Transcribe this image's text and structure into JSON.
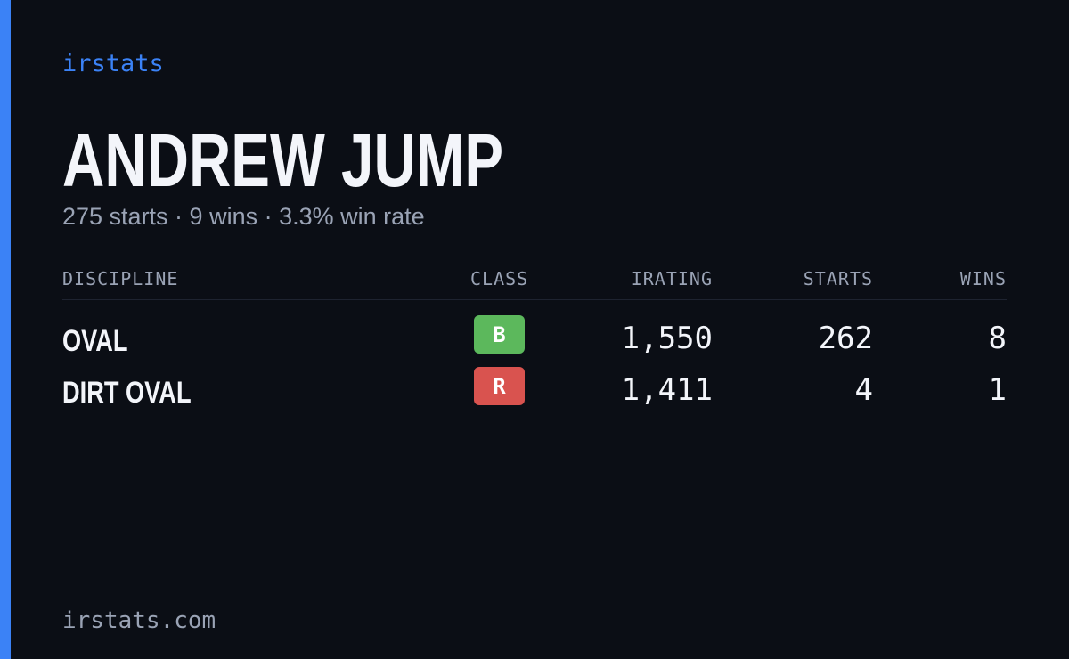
{
  "brand": "irstats",
  "title": "ANDREW JUMP",
  "subtitle": "275 starts · 9 wins · 3.3% win rate",
  "table": {
    "headers": [
      "DISCIPLINE",
      "CLASS",
      "IRATING",
      "STARTS",
      "WINS"
    ],
    "rows": [
      {
        "discipline": "OVAL",
        "class": "B",
        "class_color": "#5cb85c",
        "irating": "1,550",
        "starts": "262",
        "wins": "8"
      },
      {
        "discipline": "DIRT OVAL",
        "class": "R",
        "class_color": "#d9534f",
        "irating": "1,411",
        "starts": "4",
        "wins": "1"
      }
    ]
  },
  "footer": "irstats.com"
}
